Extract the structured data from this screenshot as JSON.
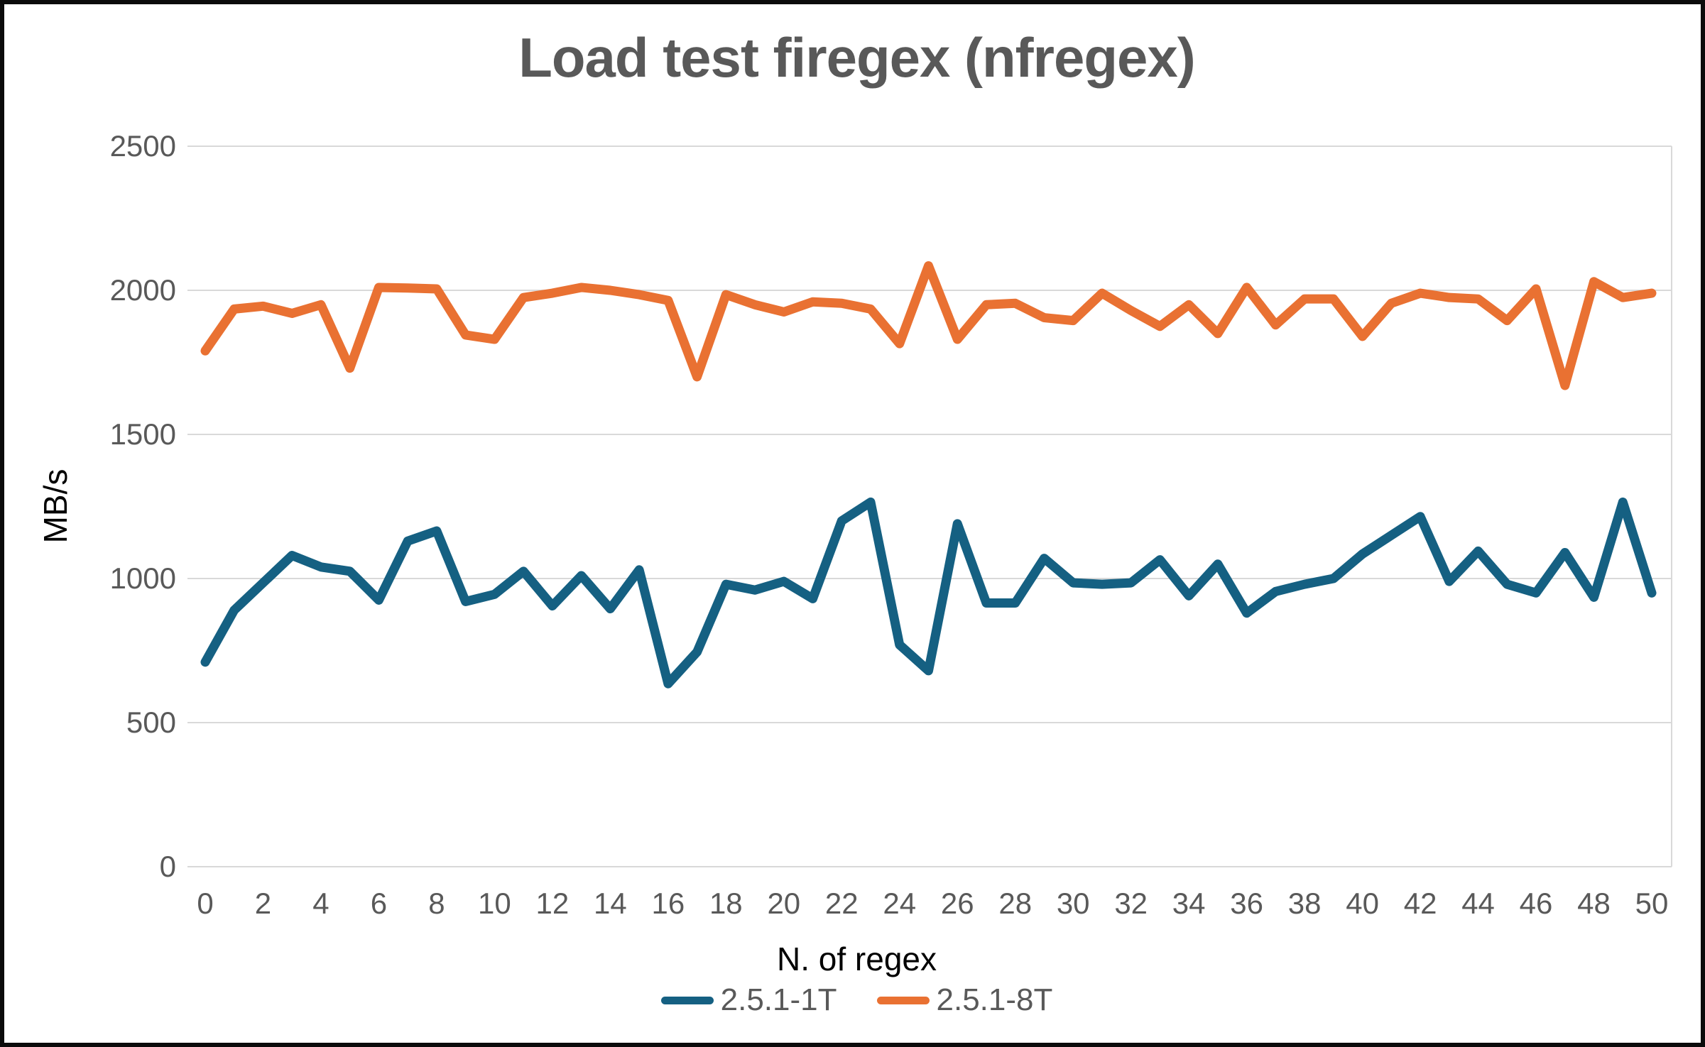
{
  "chart": {
    "title": "Load test firegex (nfregex)",
    "x_axis_title": "N. of regex",
    "y_axis_title": "MB/s"
  },
  "colors": {
    "series1": "#156082",
    "series2": "#E97132",
    "gridline": "#D9D9D9",
    "tick_text": "#595959",
    "title_text": "#595959",
    "axis_title_text": "#000000",
    "frame_border": "#0b0b0b",
    "background": "#ffffff"
  },
  "chart_data": {
    "type": "line",
    "title": "Load test firegex (nfregex)",
    "xlabel": "N. of regex",
    "ylabel": "MB/s",
    "xlim": [
      0,
      50
    ],
    "ylim": [
      0,
      2500
    ],
    "xticks": [
      0,
      2,
      4,
      6,
      8,
      10,
      12,
      14,
      16,
      18,
      20,
      22,
      24,
      26,
      28,
      30,
      32,
      34,
      36,
      38,
      40,
      42,
      44,
      46,
      48,
      50
    ],
    "yticks": [
      0,
      500,
      1000,
      1500,
      2000,
      2500
    ],
    "grid": "horizontal",
    "legend_position": "bottom",
    "x": [
      0,
      1,
      2,
      3,
      4,
      5,
      6,
      7,
      8,
      9,
      10,
      11,
      12,
      13,
      14,
      15,
      16,
      17,
      18,
      19,
      20,
      21,
      22,
      23,
      24,
      25,
      26,
      27,
      28,
      29,
      30,
      31,
      32,
      33,
      34,
      35,
      36,
      37,
      38,
      39,
      40,
      41,
      42,
      43,
      44,
      45,
      46,
      47,
      48,
      49,
      50
    ],
    "series": [
      {
        "name": "2.5.1-1T",
        "color": "#156082",
        "values": [
          710,
          890,
          985,
          1080,
          1040,
          1025,
          925,
          1130,
          1165,
          920,
          945,
          1025,
          905,
          1010,
          895,
          1030,
          635,
          745,
          980,
          960,
          990,
          930,
          1200,
          1265,
          770,
          680,
          1190,
          915,
          915,
          1070,
          985,
          980,
          985,
          1065,
          940,
          1050,
          880,
          955,
          980,
          1000,
          1085,
          1150,
          1215,
          990,
          1095,
          980,
          950,
          1090,
          935,
          1265,
          950
        ]
      },
      {
        "name": "2.5.1-8T",
        "color": "#E97132",
        "values": [
          1790,
          1935,
          1945,
          1920,
          1950,
          1730,
          2010,
          2008,
          2005,
          1845,
          1830,
          1975,
          1990,
          2010,
          2000,
          1985,
          1965,
          1700,
          1985,
          1950,
          1925,
          1960,
          1955,
          1935,
          1815,
          2085,
          1830,
          1950,
          1955,
          1905,
          1895,
          1990,
          1930,
          1875,
          1950,
          1850,
          2010,
          1880,
          1970,
          1970,
          1840,
          1955,
          1990,
          1975,
          1970,
          1895,
          2005,
          1670,
          2030,
          1975,
          1990
        ]
      }
    ]
  }
}
